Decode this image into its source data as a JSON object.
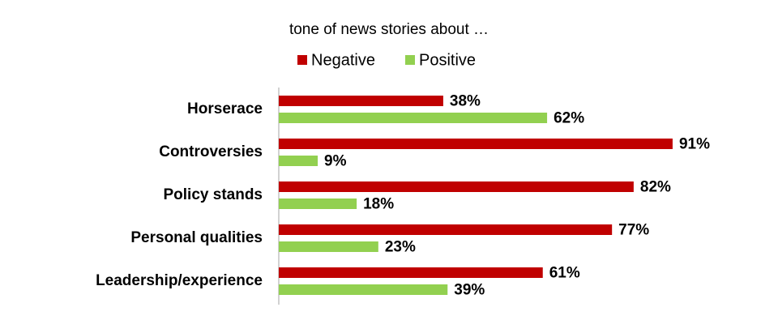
{
  "chart_data": {
    "type": "bar",
    "orientation": "horizontal",
    "title": "tone of news stories about …",
    "categories": [
      "Horserace",
      "Controversies",
      "Policy stands",
      "Personal qualities",
      "Leadership/experience"
    ],
    "series": [
      {
        "name": "Negative",
        "color": "#c00000",
        "values": [
          38,
          91,
          82,
          77,
          61
        ],
        "value_labels": [
          "38%",
          "91%",
          "82%",
          "77%",
          "61%"
        ]
      },
      {
        "name": "Positive",
        "color": "#92d050",
        "values": [
          62,
          9,
          18,
          23,
          39
        ],
        "value_labels": [
          "62%",
          "9%",
          "18%",
          "23%",
          "39%"
        ]
      }
    ],
    "xlim": [
      0,
      100
    ],
    "grid": false,
    "legend": "top"
  }
}
